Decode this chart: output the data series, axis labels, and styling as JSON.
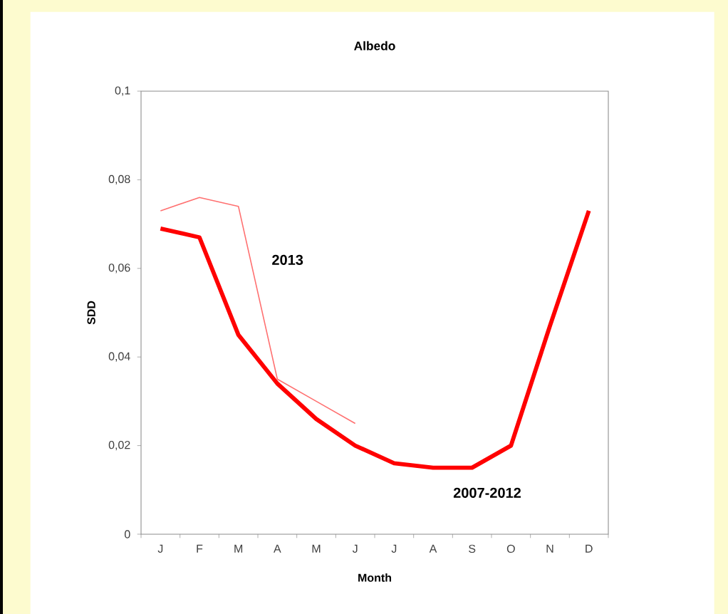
{
  "chart_data": {
    "type": "line",
    "title": "Albedo",
    "xlabel": "Month",
    "ylabel": "SDD",
    "categories": [
      "J",
      "F",
      "M",
      "A",
      "M",
      "J",
      "J",
      "A",
      "S",
      "O",
      "N",
      "D"
    ],
    "ylim": [
      0,
      0.1
    ],
    "yticks": [
      0,
      {
        "value": 0.02,
        "label": "0,02"
      },
      {
        "value": 0.04,
        "label": "0,04"
      },
      {
        "value": 0.06,
        "label": "0,06"
      },
      {
        "value": 0.08,
        "label": "0,08"
      },
      {
        "value": 0.1,
        "label": "0,1"
      }
    ],
    "series": [
      {
        "name": "2007-2012",
        "color": "#ff0000",
        "values": [
          0.069,
          0.067,
          0.045,
          0.034,
          0.026,
          0.02,
          0.016,
          0.015,
          0.015,
          0.02,
          0.047,
          0.073
        ]
      },
      {
        "name": "2013",
        "color": "#ff7070",
        "values": [
          0.073,
          0.076,
          0.074,
          0.035,
          0.03,
          0.025,
          null,
          null,
          null,
          null,
          null,
          null
        ]
      }
    ]
  }
}
